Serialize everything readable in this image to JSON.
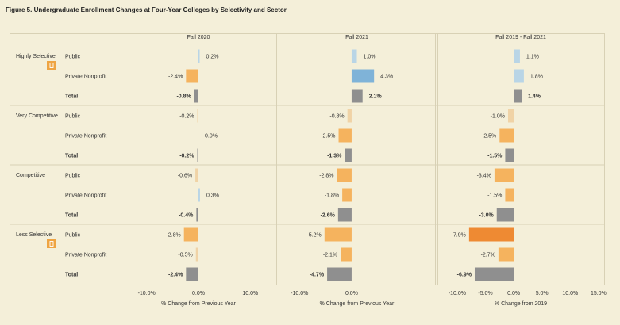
{
  "title": "Figure 5. Undergraduate Enrollment Changes at Four-Year Colleges by Selectivity and Sector",
  "colors": {
    "background": "#f4efd9",
    "grid": "#d8d1b5",
    "total": "#8f8f8f",
    "increase_small": "#b9d5e6",
    "increase_large": "#7fb3d8",
    "decrease_small": "#f0d3a6",
    "decrease_medium": "#f5b35e",
    "decrease_large": "#ee8a33",
    "badge": "#eea442"
  },
  "chart_data": {
    "type": "bar",
    "orientation": "horizontal",
    "panels": [
      {
        "title": "Fall 2020",
        "xlabel": "% Change from Previous Year",
        "ticks": [
          "-10.0%",
          "0.0%",
          "10.0%"
        ],
        "tick_values": [
          -10,
          0,
          10
        ],
        "xlim": [
          -15,
          15
        ]
      },
      {
        "title": "Fall 2021",
        "xlabel": "% Change from Previous Year",
        "ticks": [
          "-10.0%",
          "0.0%"
        ],
        "tick_values": [
          -10,
          0
        ],
        "xlim": [
          -14,
          16
        ]
      },
      {
        "title": "Fall 2019 - Fall 2021",
        "xlabel": "% Change from 2019",
        "ticks": [
          "-10.0%",
          "-5.0%",
          "0.0%",
          "5.0%",
          "10.0%",
          "15.0%"
        ],
        "tick_values": [
          -10,
          -5,
          0,
          5,
          10,
          15
        ],
        "xlim": [
          -13.5,
          16
        ]
      }
    ],
    "groups": [
      {
        "name": "Highly Selective",
        "badge": true,
        "rows": [
          {
            "label": "Public",
            "total": false,
            "values": [
              0.2,
              1.0,
              1.1
            ],
            "labels": [
              "0.2%",
              "1.0%",
              "1.1%"
            ]
          },
          {
            "label": "Private Nonprofit",
            "total": false,
            "values": [
              -2.4,
              4.3,
              1.8
            ],
            "labels": [
              "-2.4%",
              "4.3%",
              "1.8%"
            ]
          },
          {
            "label": "Total",
            "total": true,
            "values": [
              -0.8,
              2.1,
              1.4
            ],
            "labels": [
              "-0.8%",
              "2.1%",
              "1.4%"
            ]
          }
        ]
      },
      {
        "name": "Very Competitive",
        "badge": false,
        "rows": [
          {
            "label": "Public",
            "total": false,
            "values": [
              -0.2,
              -0.8,
              -1.0
            ],
            "labels": [
              "-0.2%",
              "-0.8%",
              "-1.0%"
            ]
          },
          {
            "label": "Private Nonprofit",
            "total": false,
            "values": [
              0.0,
              -2.5,
              -2.5
            ],
            "labels": [
              "0.0%",
              "-2.5%",
              "-2.5%"
            ]
          },
          {
            "label": "Total",
            "total": true,
            "values": [
              -0.2,
              -1.3,
              -1.5
            ],
            "labels": [
              "-0.2%",
              "-1.3%",
              "-1.5%"
            ]
          }
        ]
      },
      {
        "name": "Competitive",
        "badge": false,
        "rows": [
          {
            "label": "Public",
            "total": false,
            "values": [
              -0.6,
              -2.8,
              -3.4
            ],
            "labels": [
              "-0.6%",
              "-2.8%",
              "-3.4%"
            ]
          },
          {
            "label": "Private Nonprofit",
            "total": false,
            "values": [
              0.3,
              -1.8,
              -1.5
            ],
            "labels": [
              "0.3%",
              "-1.8%",
              "-1.5%"
            ]
          },
          {
            "label": "Total",
            "total": true,
            "values": [
              -0.4,
              -2.6,
              -3.0
            ],
            "labels": [
              "-0.4%",
              "-2.6%",
              "-3.0%"
            ]
          }
        ]
      },
      {
        "name": "Less Selective",
        "badge": true,
        "rows": [
          {
            "label": "Public",
            "total": false,
            "values": [
              -2.8,
              -5.2,
              -7.9
            ],
            "labels": [
              "-2.8%",
              "-5.2%",
              "-7.9%"
            ]
          },
          {
            "label": "Private Nonprofit",
            "total": false,
            "values": [
              -0.5,
              -2.1,
              -2.7
            ],
            "labels": [
              "-0.5%",
              "-2.1%",
              "-2.7%"
            ]
          },
          {
            "label": "Total",
            "total": true,
            "values": [
              -2.4,
              -4.7,
              -6.9
            ],
            "labels": [
              "-2.4%",
              "-4.7%",
              "-6.9%"
            ]
          }
        ]
      }
    ]
  }
}
